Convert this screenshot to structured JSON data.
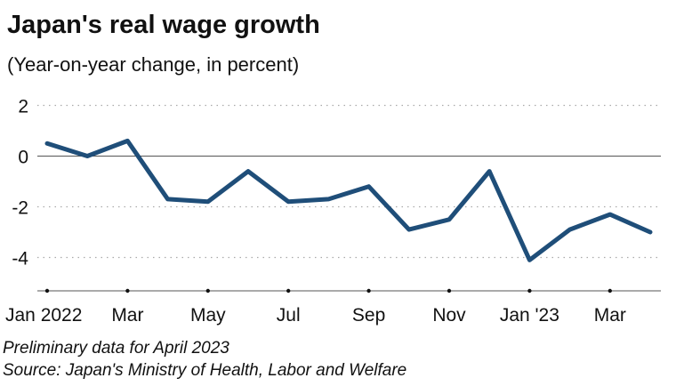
{
  "chart_data": {
    "type": "line",
    "title": "Japan's real wage growth",
    "subtitle": "(Year-on-year change, in percent)",
    "x": [
      "Jan 2022",
      "Feb 2022",
      "Mar 2022",
      "Apr 2022",
      "May 2022",
      "Jun 2022",
      "Jul 2022",
      "Aug 2022",
      "Sep 2022",
      "Oct 2022",
      "Nov 2022",
      "Dec 2022",
      "Jan 2023",
      "Feb 2023",
      "Mar 2023",
      "Apr 2023"
    ],
    "x_tick_labels": [
      {
        "index": 0,
        "label": "Jan 2022"
      },
      {
        "index": 2,
        "label": "Mar"
      },
      {
        "index": 4,
        "label": "May"
      },
      {
        "index": 6,
        "label": "Jul"
      },
      {
        "index": 8,
        "label": "Sep"
      },
      {
        "index": 10,
        "label": "Nov"
      },
      {
        "index": 12,
        "label": "Jan '23"
      },
      {
        "index": 14,
        "label": "Mar"
      }
    ],
    "series": [
      {
        "values": [
          0.5,
          0.0,
          0.6,
          -1.7,
          -1.8,
          -0.6,
          -1.8,
          -1.7,
          -1.2,
          -2.9,
          -2.5,
          -0.6,
          -4.1,
          -2.9,
          -2.3,
          -3.0
        ]
      }
    ],
    "y_ticks": [
      2,
      0,
      -2,
      -4
    ],
    "ylim": [
      -5.3,
      2.1
    ],
    "grid": "horizontal dotted",
    "line_color": "#1f4e79",
    "notes": [
      "Preliminary data for April 2023",
      "Source: Japan's Ministry of Health, Labor and Welfare"
    ]
  }
}
